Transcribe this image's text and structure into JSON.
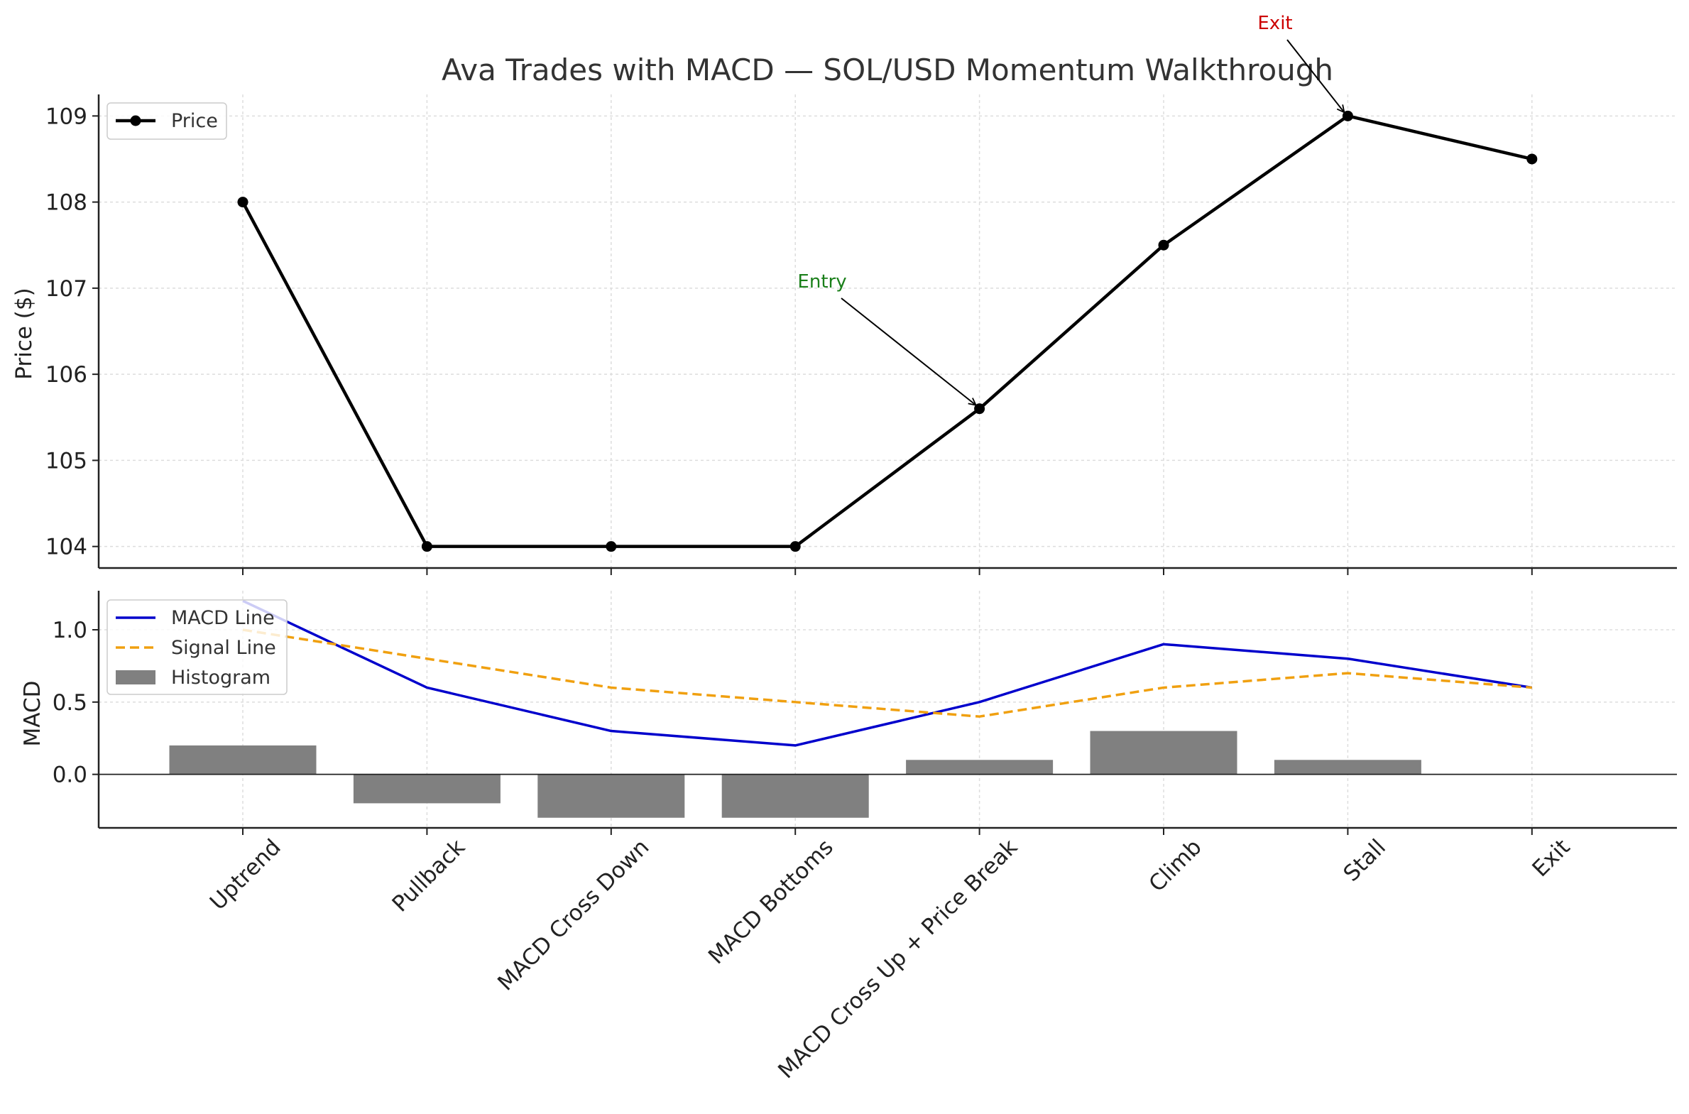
{
  "title": "Ava Trades with MACD — SOL/USD Momentum Walkthrough",
  "chart_data": [
    {
      "type": "line",
      "panel": "price",
      "ylabel": "Price ($)",
      "ylim": [
        103.75,
        109.25
      ],
      "yticks": [
        104,
        105,
        106,
        107,
        108,
        109
      ],
      "categories": [
        "Uptrend",
        "Pullback",
        "MACD Cross Down",
        "MACD Bottoms",
        "MACD Cross Up + Price Break",
        "Climb",
        "Stall",
        "Exit"
      ],
      "series": [
        {
          "name": "Price",
          "values": [
            108,
            104,
            104,
            104,
            105.6,
            107.5,
            109,
            108.5
          ],
          "color": "#000000",
          "marker": "circle"
        }
      ],
      "annotations": [
        {
          "text": "Entry",
          "category_index": 4,
          "value": 105.6,
          "text_color": "#1a7f1a"
        },
        {
          "text": "Exit",
          "category_index": 6,
          "value": 109,
          "text_color": "#cc0000"
        }
      ],
      "grid": true,
      "legend_position": "top-left"
    },
    {
      "type": "line",
      "panel": "macd",
      "ylabel": "MACD",
      "ylim": [
        -0.37,
        1.27
      ],
      "yticks": [
        0.0,
        0.5,
        1.0
      ],
      "ytick_labels": [
        "0.0",
        "0.5",
        "1.0"
      ],
      "categories": [
        "Uptrend",
        "Pullback",
        "MACD Cross Down",
        "MACD Bottoms",
        "MACD Cross Up + Price Break",
        "Climb",
        "Stall",
        "Exit"
      ],
      "series": [
        {
          "name": "MACD Line",
          "kind": "line",
          "values": [
            1.2,
            0.6,
            0.3,
            0.2,
            0.5,
            0.9,
            0.8,
            0.6
          ],
          "color": "#0000cc"
        },
        {
          "name": "Signal Line",
          "kind": "dashed-line",
          "values": [
            1.0,
            0.8,
            0.6,
            0.5,
            0.4,
            0.6,
            0.7,
            0.6
          ],
          "color": "#f0a010"
        },
        {
          "name": "Histogram",
          "kind": "bar",
          "values": [
            0.2,
            -0.2,
            -0.3,
            -0.3,
            0.1,
            0.3,
            0.1,
            0.0
          ],
          "color": "#808080"
        }
      ],
      "grid": true,
      "legend_position": "top-left"
    }
  ]
}
